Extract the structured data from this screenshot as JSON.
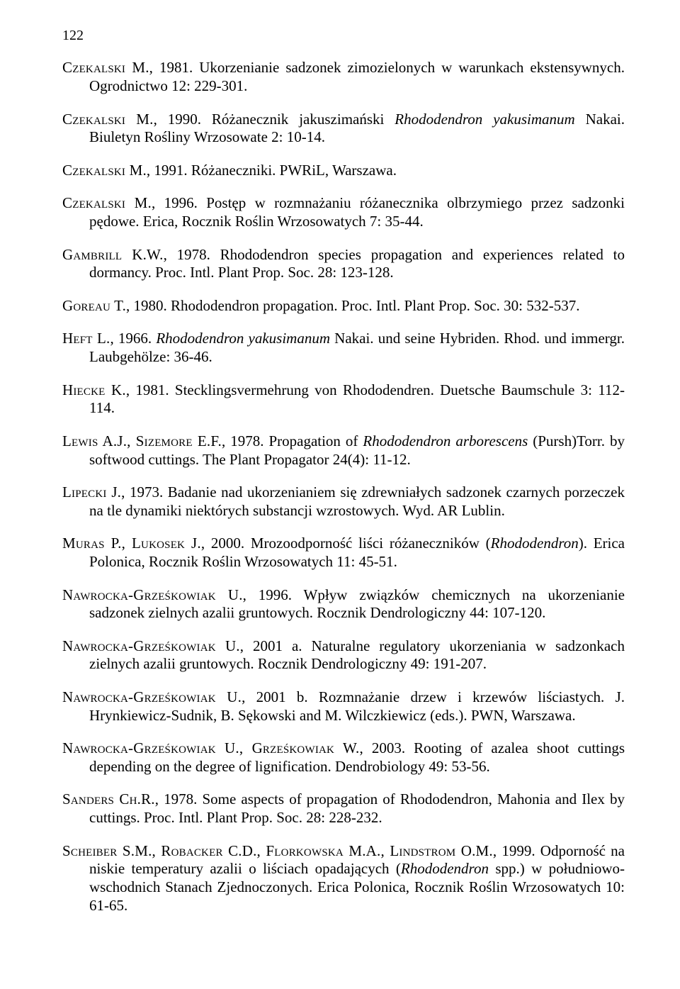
{
  "page_number": "122",
  "font": {
    "family": "Times New Roman",
    "body_size_pt": 16,
    "line_height": 1.22
  },
  "colors": {
    "text": "#000000",
    "background": "#ffffff"
  },
  "references": [
    {
      "author": "Czekalski M.",
      "rest": ", 1981. Ukorzenianie sadzonek zimozielonych w warunkach ekstensywnych. Ogrodnictwo 12: 229-301."
    },
    {
      "author": "Czekalski M.",
      "rest": ", 1990. Różanecznik jakuszimański ",
      "ital": "Rhododendron yakusimanum",
      "rest2": " Nakai. Biuletyn Rośliny Wrzosowate 2: 10-14."
    },
    {
      "author": "Czekalski M.",
      "rest": ", 1991. Różaneczniki. PWRiL, Warszawa."
    },
    {
      "author": "Czekalski M.",
      "rest": ", 1996. Postęp w rozmnażaniu różanecznika olbrzymiego przez sadzonki pędowe. Erica, Rocznik Roślin Wrzosowatych 7: 35-44."
    },
    {
      "author": "Gambrill K.W.",
      "rest": ", 1978. Rhododendron species propagation and experiences related to dormancy. Proc. Intl. Plant Prop. Soc. 28: 123-128."
    },
    {
      "author": "Goreau T.",
      "rest": ", 1980. Rhododendron propagation. Proc. Intl. Plant Prop. Soc. 30: 532-537."
    },
    {
      "author": "Heft L.",
      "rest": ", 1966. ",
      "ital": "Rhododendron yakusimanum",
      "rest2": " Nakai. und seine Hybriden. Rhod. und immergr. Laubgehölze: 36-46."
    },
    {
      "author": "Hiecke K.",
      "rest": ", 1981. Stecklingsvermehrung von Rhododendren. Duetsche Baumschule 3: 112-114."
    },
    {
      "author": "Lewis A.J., Sizemore E.F.",
      "rest": ", 1978. Propagation of ",
      "ital": "Rhododendron arborescens",
      "rest2": " (Pursh)Torr. by softwood cuttings. The Plant Propagator 24(4): 11-12."
    },
    {
      "author": "Lipecki J.",
      "rest": ", 1973. Badanie nad ukorzenianiem się zdrewniałych sadzonek czarnych porzeczek na tle dynamiki niektórych substancji wzrostowych. Wyd. AR Lublin."
    },
    {
      "author": "Muras P., Lukosek J.",
      "rest": ", 2000. Mrozoodporność liści różaneczników (",
      "ital": "Rhododendron",
      "rest2": "). Erica Polonica, Rocznik Roślin Wrzosowatych 11: 45-51."
    },
    {
      "author": "Nawrocka-Grześkowiak U.",
      "rest": ", 1996. Wpływ związków chemicznych na ukorzenianie sadzonek zielnych azalii gruntowych. Rocznik Dendrologiczny 44: 107-120."
    },
    {
      "author": "Nawrocka-Grześkowiak U.",
      "rest": ", 2001 a. Naturalne regulatory ukorzeniania w sadzonkach zielnych azalii gruntowych. Rocznik Dendrologiczny 49: 191-207."
    },
    {
      "author": "Nawrocka-Grześkowiak U.",
      "rest": ", 2001 b. Rozmnażanie drzew i krzewów liściastych. J. Hrynkiewicz-Sudnik, B. Sękowski and M. Wilczkiewicz (eds.). PWN, Warszawa."
    },
    {
      "author": "Nawrocka-Grześkowiak U., Grześkowiak W.",
      "rest": ", 2003. Rooting of azalea shoot cuttings depending on the degree of lignification. Dendrobiology 49: 53-56."
    },
    {
      "author": "Sanders Ch.R.",
      "rest": ", 1978. Some aspects of propagation of Rhododendron, Mahonia and Ilex by cuttings. Proc. Intl. Plant Prop. Soc. 28: 228-232."
    },
    {
      "author": "Scheiber S.M., Robacker C.D., Florkowska M.A., Lindstrom O.M.",
      "rest": ", 1999. Odporność na niskie temperatury azalii o liściach opadających (",
      "ital": "Rhododendron",
      "rest2": " spp.) w południowo-wschodnich Stanach Zjednoczonych. Erica Polonica, Rocznik Roślin Wrzosowatych 10: 61-65."
    }
  ]
}
